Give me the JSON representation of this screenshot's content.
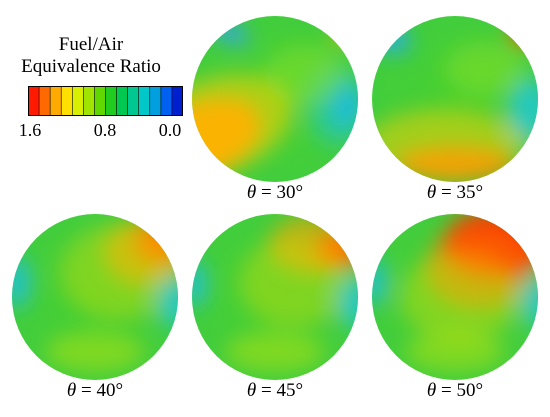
{
  "legend": {
    "title_line1": "Fuel/Air",
    "title_line2": "Equivalence Ratio",
    "tick_labels": [
      "1.6",
      "0.8",
      "0.0"
    ],
    "colors": [
      "#ff1a00",
      "#ff6a00",
      "#ffaa00",
      "#ffe000",
      "#d8f000",
      "#a0e400",
      "#60d800",
      "#20cc20",
      "#00c850",
      "#00c890",
      "#00c8c8",
      "#00a0e0",
      "#0060f0",
      "#0020d0"
    ]
  },
  "panels": [
    {
      "symbol": "θ",
      "eq": " = ",
      "value": "30°",
      "variant": "30"
    },
    {
      "symbol": "θ",
      "eq": " = ",
      "value": "35°",
      "variant": "35"
    },
    {
      "symbol": "θ",
      "eq": " = ",
      "value": "40°",
      "variant": "40"
    },
    {
      "symbol": "θ",
      "eq": " = ",
      "value": "45°",
      "variant": "45"
    },
    {
      "symbol": "θ",
      "eq": " = ",
      "value": "50°",
      "variant": "50"
    }
  ]
}
